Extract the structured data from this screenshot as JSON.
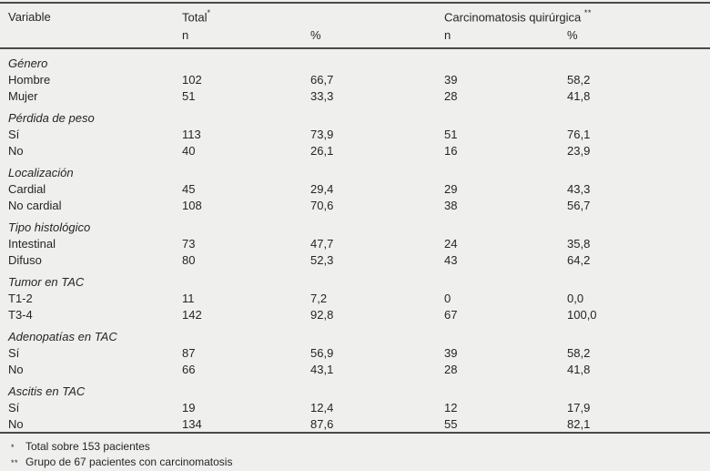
{
  "colors": {
    "background": "#efefee",
    "text": "#262524",
    "rule": "#4a4a48"
  },
  "table": {
    "header": {
      "variable": "Variable",
      "total_label": "Total",
      "total_marker": "*",
      "carc_label": "Carcinomatosis quirúrgica",
      "carc_marker": "**",
      "sub_n": "n",
      "sub_pct": "%"
    },
    "groups": [
      {
        "label": "Género",
        "rows": [
          {
            "label": "Hombre",
            "total_n": "102",
            "total_pct": "66,7",
            "carc_n": "39",
            "carc_pct": "58,2"
          },
          {
            "label": "Mujer",
            "total_n": "51",
            "total_pct": "33,3",
            "carc_n": "28",
            "carc_pct": "41,8"
          }
        ]
      },
      {
        "label": "Pérdida de peso",
        "rows": [
          {
            "label": "Sí",
            "total_n": "113",
            "total_pct": "73,9",
            "carc_n": "51",
            "carc_pct": "76,1"
          },
          {
            "label": "No",
            "total_n": "40",
            "total_pct": "26,1",
            "carc_n": "16",
            "carc_pct": "23,9"
          }
        ]
      },
      {
        "label": "Localización",
        "rows": [
          {
            "label": "Cardial",
            "total_n": "45",
            "total_pct": "29,4",
            "carc_n": "29",
            "carc_pct": "43,3"
          },
          {
            "label": "No cardial",
            "total_n": "108",
            "total_pct": "70,6",
            "carc_n": "38",
            "carc_pct": "56,7"
          }
        ]
      },
      {
        "label": "Tipo histológico",
        "rows": [
          {
            "label": "Intestinal",
            "total_n": "73",
            "total_pct": "47,7",
            "carc_n": "24",
            "carc_pct": "35,8"
          },
          {
            "label": "Difuso",
            "total_n": "80",
            "total_pct": "52,3",
            "carc_n": "43",
            "carc_pct": "64,2"
          }
        ]
      },
      {
        "label": "Tumor en TAC",
        "rows": [
          {
            "label": "T1-2",
            "total_n": "11",
            "total_pct": "7,2",
            "carc_n": "0",
            "carc_pct": "0,0"
          },
          {
            "label": "T3-4",
            "total_n": "142",
            "total_pct": "92,8",
            "carc_n": "67",
            "carc_pct": "100,0"
          }
        ]
      },
      {
        "label": "Adenopatías en TAC",
        "rows": [
          {
            "label": "Sí",
            "total_n": "87",
            "total_pct": "56,9",
            "carc_n": "39",
            "carc_pct": "58,2"
          },
          {
            "label": "No",
            "total_n": "66",
            "total_pct": "43,1",
            "carc_n": "28",
            "carc_pct": "41,8"
          }
        ]
      },
      {
        "label": "Ascitis en TAC",
        "rows": [
          {
            "label": "Sí",
            "total_n": "19",
            "total_pct": "12,4",
            "carc_n": "12",
            "carc_pct": "17,9"
          },
          {
            "label": "No",
            "total_n": "134",
            "total_pct": "87,6",
            "carc_n": "55",
            "carc_pct": "82,1"
          }
        ]
      }
    ],
    "footnotes": [
      {
        "marker": "*",
        "text": "Total sobre 153 pacientes"
      },
      {
        "marker": "**",
        "text": "Grupo de 67 pacientes con carcinomatosis"
      }
    ]
  }
}
